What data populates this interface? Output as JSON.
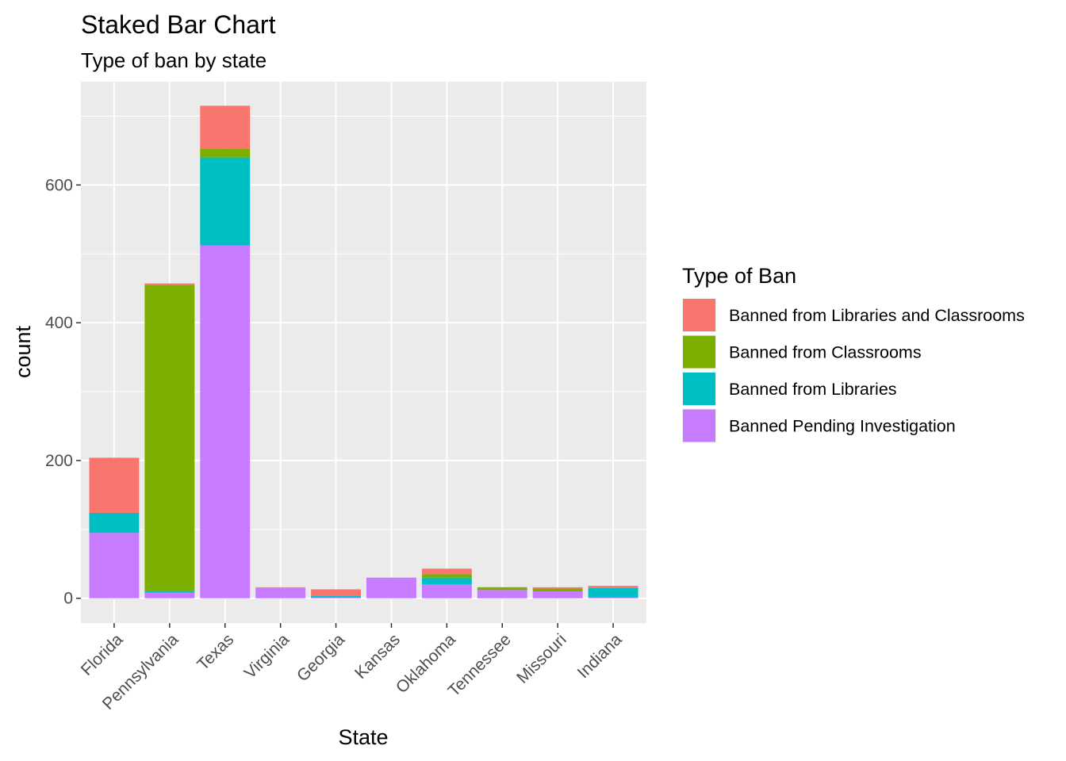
{
  "chart_data": {
    "type": "bar",
    "stacked": true,
    "title": "Staked Bar Chart",
    "subtitle": "Type of ban by state",
    "xlabel": "State",
    "ylabel": "count",
    "ylim": [
      -36,
      750
    ],
    "yticks": [
      0,
      200,
      400,
      600
    ],
    "grid": true,
    "legend_position": "right",
    "legend_title": "Type of Ban",
    "categories": [
      "Florida",
      "Pennsylvania",
      "Texas",
      "Virginia",
      "Georgia",
      "Kansas",
      "Oklahoma",
      "Tennessee",
      "Missouri",
      "Indiana"
    ],
    "series": [
      {
        "name": "Banned Pending Investigation",
        "color": "#C77CFF",
        "values": [
          95,
          8,
          512,
          15,
          1,
          30,
          20,
          12,
          10,
          1
        ]
      },
      {
        "name": "Banned from Libraries",
        "color": "#00BFC4",
        "values": [
          29,
          3,
          128,
          0,
          3,
          0,
          10,
          0,
          0,
          14
        ]
      },
      {
        "name": "Banned from Classrooms",
        "color": "#7CAE00",
        "values": [
          0,
          444,
          13,
          0,
          0,
          0,
          5,
          4,
          4,
          0
        ]
      },
      {
        "name": "Banned from Libraries and Classrooms",
        "color": "#F8766D",
        "values": [
          80,
          2,
          62,
          1,
          9,
          0,
          8,
          0,
          2,
          3
        ]
      }
    ],
    "legend_order": [
      "Banned from Libraries and Classrooms",
      "Banned from Classrooms",
      "Banned from Libraries",
      "Banned Pending Investigation"
    ]
  }
}
